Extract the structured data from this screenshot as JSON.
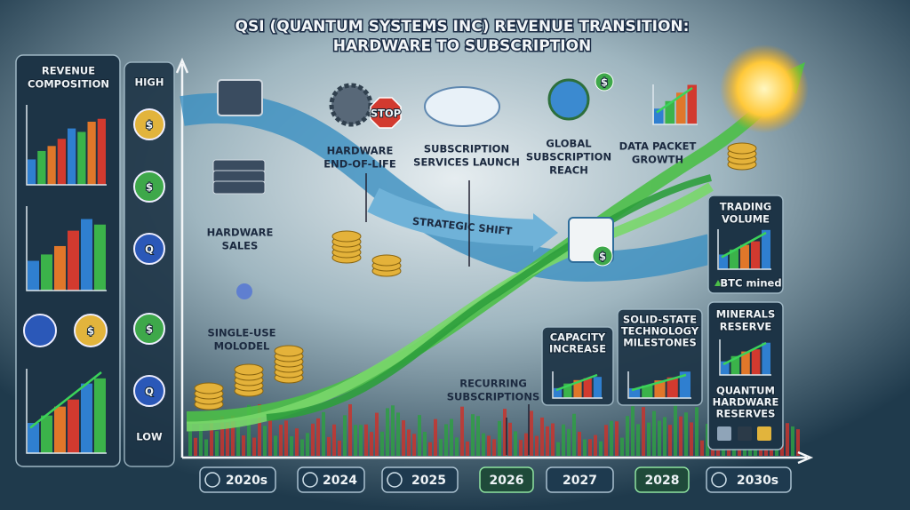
{
  "header": {
    "title_lines": [
      "QSI (QUANTUM SYSTEMS INC) REVENUE TRANSITION:",
      "HARDWARE TO SUBSCRIPTION"
    ]
  },
  "left_panel": {
    "title_lines": [
      "REVENUE",
      "COMPOSITION"
    ]
  },
  "scale": {
    "high": "HIGH",
    "low": "LOW"
  },
  "icons": {
    "stop": "STOP",
    "dollar": "$",
    "q": "Q"
  },
  "stages": [
    {
      "lines": [
        "HARDWARE",
        "SALES"
      ]
    },
    {
      "lines": [
        "SINGLE-USE",
        "MOLODEL"
      ]
    },
    {
      "lines": [
        "HARDWARE",
        "END-OF-LIFE"
      ]
    },
    {
      "lines": [
        "SUBSCRIPTION",
        "SERVICES LAUNCH"
      ]
    },
    {
      "lines": [
        "GLOBAL",
        "SUBSCRIPTION",
        "REACH"
      ]
    },
    {
      "lines": [
        "DATA PACKET",
        "GROWTH"
      ]
    },
    {
      "lines": [
        "RECURRING",
        "SUBSCRIPTIONS"
      ]
    }
  ],
  "strategic_shift": "STRATEGIC SHIFT",
  "milestones": [
    {
      "lines": [
        "CAPACITY",
        "INCREASE"
      ]
    },
    {
      "lines": [
        "SOLID-STATE",
        "TECHNOLOGY",
        "MILESTONES"
      ]
    }
  ],
  "trading": {
    "title_lines": [
      "TRADING",
      "VOLUME"
    ],
    "note": "BTC mined"
  },
  "minerals": {
    "title_lines": [
      "MINERALS",
      "RESERVE"
    ],
    "subtitle_lines": [
      "QUANTUM",
      "HARDWARE",
      "RESERVES"
    ]
  },
  "timeline": [
    "2020s",
    "2024",
    "2025",
    "2026",
    "2027",
    "2028",
    "2030s"
  ]
}
